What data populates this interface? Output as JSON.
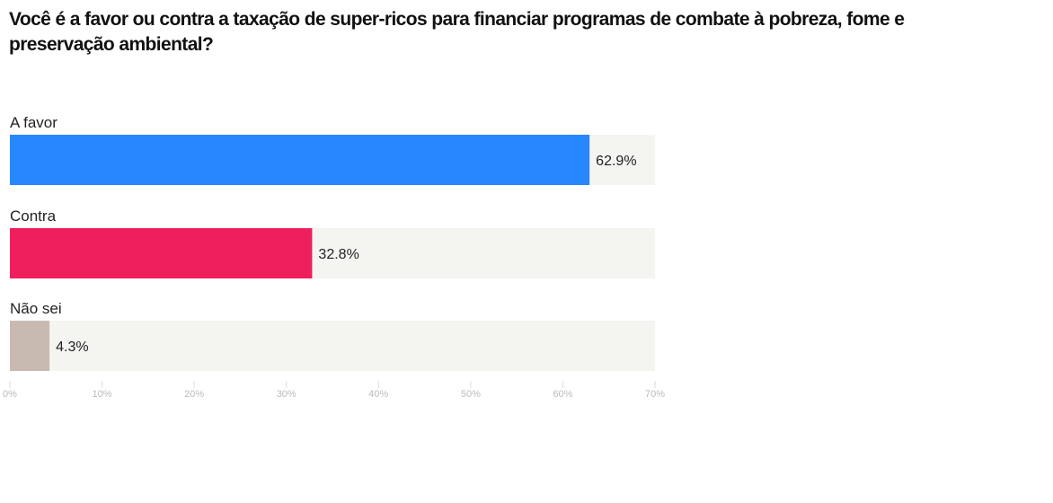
{
  "chart_data": {
    "type": "bar",
    "orientation": "horizontal",
    "title": "Você é a favor ou contra a taxação de super-ricos para financiar programas de combate à pobreza, fome e preservação ambiental?",
    "categories": [
      "A favor",
      "Contra",
      "Não sei"
    ],
    "values": [
      62.9,
      32.8,
      4.3
    ],
    "value_labels": [
      "62.9%",
      "32.8%",
      "4.3%"
    ],
    "colors": [
      "#2787fe",
      "#ef1e5c",
      "#c9bab1"
    ],
    "track_color": "#f4f4f1",
    "xlim": [
      0,
      70
    ],
    "xticks": [
      0,
      10,
      20,
      30,
      40,
      50,
      60,
      70
    ],
    "xtick_labels": [
      "0%",
      "10%",
      "20%",
      "30%",
      "40%",
      "50%",
      "60%",
      "70%"
    ],
    "grid": false,
    "legend": "none"
  }
}
